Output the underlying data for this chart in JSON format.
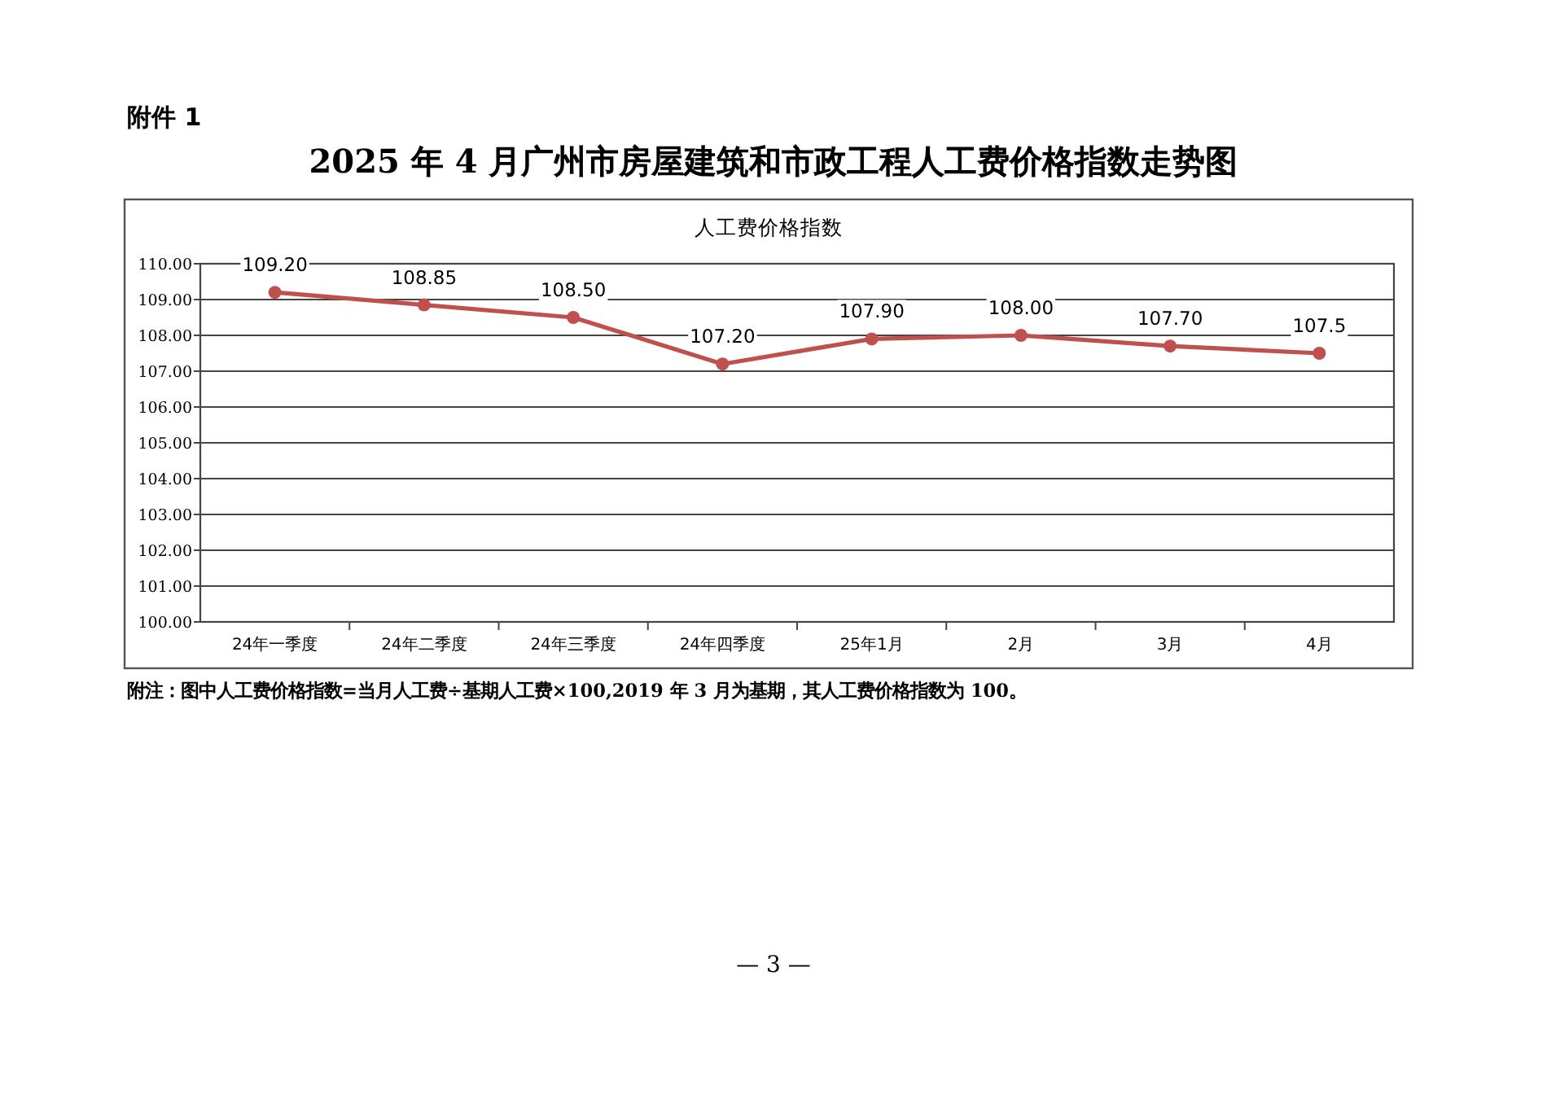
{
  "chart_data": {
    "type": "line",
    "title": "2025 年 4 月广州市房屋建筑和市政工程人工费价格指数走势图",
    "subtitle": "人工费价格指数",
    "annotations": [
      "附件 1",
      "附注：图中人工费价格指数=当月人工费÷基期人工费×100,2019 年 3 月为基期，其人工费价格指数为 100。",
      "— 3 —"
    ],
    "categories": [
      "24年一季度",
      "24年二季度",
      "24年三季度",
      "24年四季度",
      "25年1月",
      "2月",
      "3月",
      "4月"
    ],
    "values": [
      109.2,
      108.85,
      108.5,
      107.2,
      107.9,
      108.0,
      107.7,
      107.5
    ],
    "value_labels": [
      "109.20",
      "108.85",
      "108.50",
      "107.20",
      "107.90",
      "108.00",
      "107.70",
      "107.5"
    ],
    "color": "#c0504d",
    "ylim": [
      100,
      110
    ],
    "yticks": [
      {
        "value": 100,
        "label": "100.00"
      },
      {
        "value": 101,
        "label": "101.00"
      },
      {
        "value": 102,
        "label": "102.00"
      },
      {
        "value": 103,
        "label": "103.00"
      },
      {
        "value": 104,
        "label": "104.00"
      },
      {
        "value": 105,
        "label": "105.00"
      },
      {
        "value": 106,
        "label": "106.00"
      },
      {
        "value": 107,
        "label": "107.00"
      },
      {
        "value": 108,
        "label": "108.00"
      },
      {
        "value": 109,
        "label": "109.00"
      },
      {
        "value": 110,
        "label": "110.00"
      }
    ],
    "grid": "y",
    "marker": "circle",
    "line_style": "solid"
  }
}
